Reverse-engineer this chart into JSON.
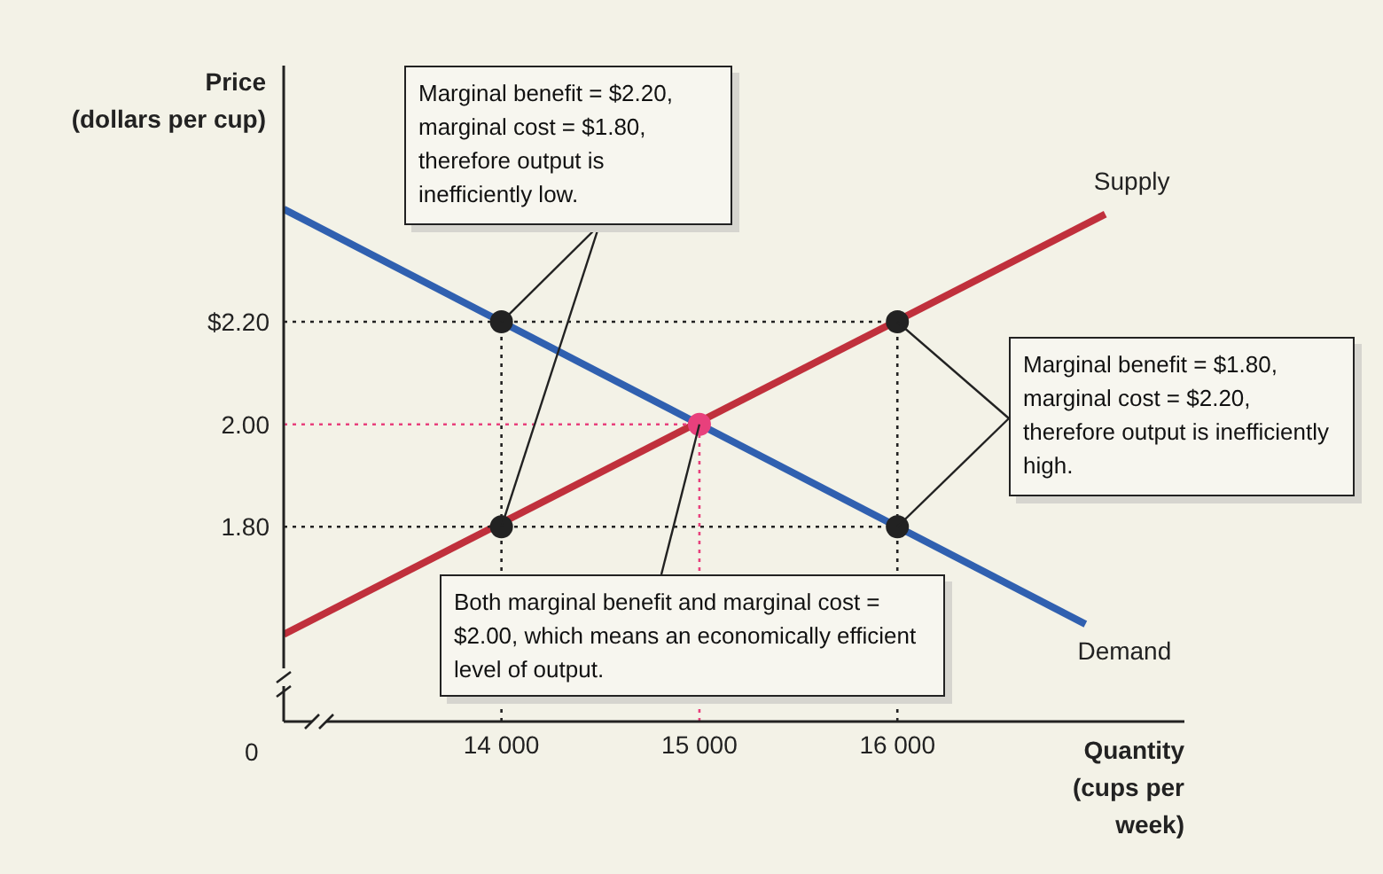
{
  "chart_data": {
    "type": "line",
    "xlabel": "Quantity (cups per week)",
    "ylabel": "Price (dollars per cup)",
    "xlim": [
      12900,
      17450
    ],
    "ylim": [
      1.42,
      2.7
    ],
    "xticks": [
      {
        "value": 14000,
        "label": "14 000"
      },
      {
        "value": 15000,
        "label": "15 000"
      },
      {
        "value": 16000,
        "label": "16 000"
      }
    ],
    "yticks": [
      {
        "value": 1.8,
        "label": "1.80"
      },
      {
        "value": 2.0,
        "label": "2.00"
      },
      {
        "value": 2.2,
        "label": "$2.20"
      }
    ],
    "marker": "none",
    "grid": false,
    "legend": false,
    "series": [
      {
        "name": "Demand",
        "color": "#3060b0",
        "x": [
          12900,
          16950
        ],
        "values": [
          2.42,
          1.61
        ],
        "line_style": "solid"
      },
      {
        "name": "Supply",
        "color": "#c0303c",
        "x": [
          12900,
          17050
        ],
        "values": [
          1.59,
          2.41
        ],
        "line_style": "solid"
      },
      {
        "color": "#222222",
        "x": [
          12900,
          16000
        ],
        "values": [
          2.2,
          2.2
        ],
        "line_style": "dotted"
      },
      {
        "color": "#222222",
        "x": [
          12900,
          16000
        ],
        "values": [
          1.8,
          1.8
        ],
        "line_style": "dotted"
      },
      {
        "color": "#e8407c",
        "x": [
          12900,
          15000
        ],
        "values": [
          2.0,
          2.0
        ],
        "line_style": "dotted"
      },
      {
        "color": "#222222",
        "x": [
          14000,
          14000
        ],
        "values": [
          1.42,
          2.2
        ],
        "line_style": "dotted"
      },
      {
        "color": "#e8407c",
        "x": [
          15000,
          15000
        ],
        "values": [
          1.42,
          2.0
        ],
        "line_style": "dotted"
      },
      {
        "color": "#222222",
        "x": [
          16000,
          16000
        ],
        "values": [
          1.42,
          2.2
        ],
        "line_style": "dotted"
      },
      {
        "type": "scatter",
        "marker": "circle",
        "x": [
          14000,
          14000,
          16000,
          16000,
          15000
        ],
        "values": [
          2.2,
          1.8,
          2.2,
          1.8,
          2.0
        ],
        "colors": [
          "#222222",
          "#222222",
          "#222222",
          "#222222",
          "#e8407c"
        ]
      }
    ],
    "annotations": [
      {
        "text": "Marginal benefit = $2.20, marginal cost = $1.80, therefore output is inefficiently low.",
        "x": 14000,
        "y": 2.2
      },
      {
        "text": "Marginal benefit = $1.80, marginal cost = $2.20, therefore output is inefficiently high.",
        "x": 16000,
        "y": 2.2
      },
      {
        "text": "Both marginal benefit and marginal cost = $2.00, which means an economically efficient level of output.",
        "x": 15000,
        "y": 2.0
      },
      "0"
    ]
  }
}
